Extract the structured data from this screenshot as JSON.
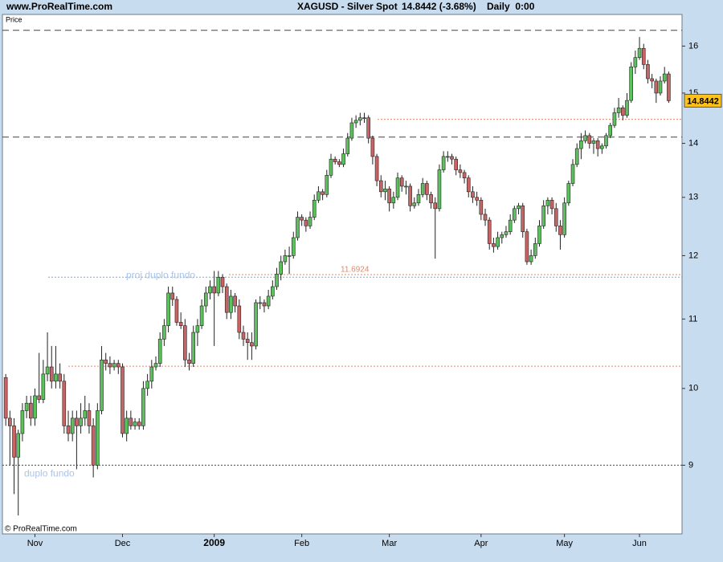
{
  "chart_data": {
    "type": "candlestick",
    "source": "www.ProRealTime.com",
    "title": "XAGUSD - Silver Spot",
    "quote": "14.8442 (-3.68%)",
    "period": "Daily  0:00",
    "y_label": "Price",
    "copyright": "© ProRealTime.com",
    "log_scale": true,
    "up_color": "#5cc05c",
    "down_color": "#c86464",
    "ylim": [
      8.19,
      16.71
    ],
    "yticks": [
      9,
      10,
      11,
      12,
      13,
      14,
      15,
      16
    ],
    "xlim": [
      -0.8,
      162.2
    ],
    "xticks": [
      {
        "value": 7,
        "label": "Nov"
      },
      {
        "value": 28,
        "label": "Dec"
      },
      {
        "value": 50,
        "label": "2009"
      },
      {
        "value": 71,
        "label": "Feb"
      },
      {
        "value": 92,
        "label": "Mar"
      },
      {
        "value": 114,
        "label": "Apr"
      },
      {
        "value": 134,
        "label": "May"
      },
      {
        "value": 152,
        "label": "Jun"
      }
    ],
    "hlines": [
      {
        "value": 16.35,
        "color": "#444444",
        "dash": "dashed"
      },
      {
        "value": 14.12,
        "color": "#444444",
        "dash": "dashed"
      },
      {
        "value": 14.47,
        "color": "#e08a6a",
        "dash": "dotted"
      },
      {
        "value": 11.6924,
        "color": "#e08a6a",
        "dash": "dotted"
      },
      {
        "value": 11.65,
        "color": "#7aa6e0",
        "dash": "dotted"
      },
      {
        "value": 10.31,
        "color": "#e08a6a",
        "dash": "dotted"
      },
      {
        "value": 9,
        "color": "#444444",
        "dash": "dotted"
      }
    ],
    "annotations": [
      "proj duplo fundo",
      "duplo fundo"
    ],
    "candles": [
      [
        10.15,
        10.2,
        9.5,
        9.6
      ],
      [
        9.6,
        9.7,
        9.0,
        9.5
      ],
      [
        9.5,
        9.6,
        8.65,
        9.1
      ],
      [
        9.1,
        9.45,
        8.4,
        9.4
      ],
      [
        9.4,
        9.8,
        9.3,
        9.7
      ],
      [
        9.7,
        9.9,
        9.6,
        9.8
      ],
      [
        9.8,
        9.9,
        9.5,
        9.6
      ],
      [
        9.6,
        10.0,
        9.5,
        9.9
      ],
      [
        9.9,
        10.5,
        9.8,
        9.85
      ],
      [
        9.85,
        10.4,
        9.8,
        10.2
      ],
      [
        10.2,
        10.8,
        10.1,
        10.3
      ],
      [
        10.3,
        10.6,
        10.0,
        10.1
      ],
      [
        10.1,
        10.6,
        10.0,
        10.2
      ],
      [
        10.2,
        10.35,
        10.0,
        10.1
      ],
      [
        10.1,
        10.2,
        9.4,
        9.5
      ],
      [
        9.5,
        9.7,
        9.3,
        9.4
      ],
      [
        9.4,
        9.7,
        9.3,
        9.6
      ],
      [
        9.6,
        9.7,
        8.95,
        9.5
      ],
      [
        9.5,
        9.8,
        9.4,
        9.6
      ],
      [
        9.6,
        9.9,
        9.5,
        9.7
      ],
      [
        9.7,
        9.8,
        9.4,
        9.5
      ],
      [
        9.5,
        9.6,
        8.85,
        9.0
      ],
      [
        9.0,
        9.8,
        8.95,
        9.7
      ],
      [
        9.7,
        10.6,
        9.65,
        10.4
      ],
      [
        10.4,
        10.5,
        10.25,
        10.35
      ],
      [
        10.35,
        10.45,
        10.2,
        10.3
      ],
      [
        10.3,
        10.4,
        10.25,
        10.35
      ],
      [
        10.35,
        10.4,
        10.2,
        10.3
      ],
      [
        10.3,
        10.35,
        9.35,
        9.4
      ],
      [
        9.4,
        9.7,
        9.3,
        9.6
      ],
      [
        9.6,
        9.7,
        9.45,
        9.5
      ],
      [
        9.5,
        9.6,
        9.45,
        9.55
      ],
      [
        9.55,
        9.6,
        9.45,
        9.5
      ],
      [
        9.5,
        10.1,
        9.45,
        10.0
      ],
      [
        10.0,
        10.2,
        9.9,
        10.1
      ],
      [
        10.1,
        10.4,
        10.0,
        10.3
      ],
      [
        10.3,
        10.45,
        10.25,
        10.35
      ],
      [
        10.35,
        10.8,
        10.3,
        10.7
      ],
      [
        10.7,
        11.0,
        10.6,
        10.9
      ],
      [
        10.9,
        11.5,
        10.8,
        11.4
      ],
      [
        11.4,
        11.5,
        11.2,
        11.3
      ],
      [
        11.3,
        11.35,
        10.9,
        10.95
      ],
      [
        10.95,
        11.1,
        10.85,
        10.9
      ],
      [
        10.9,
        11.0,
        10.3,
        10.4
      ],
      [
        10.4,
        10.5,
        10.25,
        10.35
      ],
      [
        10.35,
        10.9,
        10.3,
        10.8
      ],
      [
        10.8,
        11.0,
        10.6,
        10.9
      ],
      [
        10.9,
        11.3,
        10.85,
        11.2
      ],
      [
        11.2,
        11.5,
        11.1,
        11.4
      ],
      [
        11.4,
        11.6,
        11.3,
        11.5
      ],
      [
        11.5,
        11.75,
        10.6,
        11.4
      ],
      [
        11.4,
        11.75,
        11.35,
        11.65
      ],
      [
        11.65,
        11.7,
        11.4,
        11.5
      ],
      [
        11.5,
        11.55,
        11.0,
        11.1
      ],
      [
        11.1,
        11.45,
        11.0,
        11.35
      ],
      [
        11.35,
        11.4,
        11.1,
        11.2
      ],
      [
        11.2,
        11.3,
        10.7,
        10.8
      ],
      [
        10.8,
        10.9,
        10.6,
        10.7
      ],
      [
        10.7,
        10.8,
        10.4,
        10.65
      ],
      [
        10.65,
        10.8,
        10.4,
        10.6
      ],
      [
        10.6,
        11.3,
        10.55,
        11.25
      ],
      [
        11.25,
        11.35,
        11.15,
        11.25
      ],
      [
        11.25,
        11.3,
        11.1,
        11.2
      ],
      [
        11.2,
        11.45,
        11.15,
        11.35
      ],
      [
        11.35,
        11.6,
        11.3,
        11.5
      ],
      [
        11.5,
        11.8,
        11.45,
        11.7
      ],
      [
        11.7,
        12.0,
        11.6,
        11.9
      ],
      [
        11.9,
        12.1,
        11.85,
        12.0
      ],
      [
        12.0,
        12.15,
        11.7,
        12.0
      ],
      [
        12.0,
        12.4,
        11.95,
        12.3
      ],
      [
        12.3,
        12.75,
        12.25,
        12.65
      ],
      [
        12.65,
        12.7,
        12.5,
        12.6
      ],
      [
        12.6,
        12.65,
        12.4,
        12.5
      ],
      [
        12.5,
        12.75,
        12.45,
        12.65
      ],
      [
        12.65,
        13.05,
        12.6,
        12.95
      ],
      [
        12.95,
        13.2,
        12.9,
        13.1
      ],
      [
        13.1,
        13.15,
        12.95,
        13.05
      ],
      [
        13.05,
        13.5,
        13.0,
        13.4
      ],
      [
        13.4,
        13.8,
        13.35,
        13.7
      ],
      [
        13.7,
        13.75,
        13.6,
        13.65
      ],
      [
        13.65,
        13.7,
        13.55,
        13.6
      ],
      [
        13.6,
        13.9,
        13.55,
        13.8
      ],
      [
        13.8,
        14.2,
        13.75,
        14.1
      ],
      [
        14.1,
        14.5,
        14.05,
        14.4
      ],
      [
        14.4,
        14.55,
        14.3,
        14.45
      ],
      [
        14.45,
        14.6,
        14.35,
        14.5
      ],
      [
        14.5,
        14.6,
        14.4,
        14.5
      ],
      [
        14.5,
        14.55,
        14.0,
        14.1
      ],
      [
        14.1,
        14.15,
        13.6,
        13.75
      ],
      [
        13.75,
        13.8,
        13.2,
        13.3
      ],
      [
        13.3,
        13.4,
        13.0,
        13.1
      ],
      [
        13.1,
        13.3,
        12.95,
        13.15
      ],
      [
        13.15,
        13.2,
        12.75,
        12.9
      ],
      [
        12.9,
        13.1,
        12.8,
        13.0
      ],
      [
        13.0,
        13.45,
        12.95,
        13.35
      ],
      [
        13.35,
        13.4,
        13.1,
        13.2
      ],
      [
        13.2,
        13.3,
        13.05,
        13.2
      ],
      [
        13.2,
        13.25,
        12.75,
        12.85
      ],
      [
        12.85,
        13.0,
        12.8,
        12.9
      ],
      [
        12.9,
        13.15,
        12.85,
        13.05
      ],
      [
        13.05,
        13.35,
        13.0,
        13.25
      ],
      [
        13.25,
        13.3,
        12.95,
        13.05
      ],
      [
        13.05,
        13.1,
        12.8,
        12.9
      ],
      [
        12.9,
        13.0,
        11.95,
        12.8
      ],
      [
        12.8,
        13.6,
        12.75,
        13.5
      ],
      [
        13.5,
        13.85,
        13.45,
        13.75
      ],
      [
        13.75,
        13.85,
        13.65,
        13.75
      ],
      [
        13.75,
        13.8,
        13.6,
        13.7
      ],
      [
        13.7,
        13.75,
        13.4,
        13.5
      ],
      [
        13.5,
        13.6,
        13.35,
        13.45
      ],
      [
        13.45,
        13.5,
        13.25,
        13.35
      ],
      [
        13.35,
        13.4,
        13.0,
        13.1
      ],
      [
        13.1,
        13.2,
        12.9,
        13.0
      ],
      [
        13.0,
        13.1,
        12.85,
        12.95
      ],
      [
        12.95,
        13.0,
        12.6,
        12.7
      ],
      [
        12.7,
        12.8,
        12.5,
        12.6
      ],
      [
        12.6,
        12.65,
        12.1,
        12.2
      ],
      [
        12.2,
        12.3,
        12.05,
        12.15
      ],
      [
        12.15,
        12.4,
        12.1,
        12.3
      ],
      [
        12.3,
        12.4,
        12.2,
        12.35
      ],
      [
        12.35,
        12.5,
        12.3,
        12.4
      ],
      [
        12.4,
        12.7,
        12.35,
        12.6
      ],
      [
        12.6,
        12.85,
        12.55,
        12.8
      ],
      [
        12.8,
        12.9,
        12.7,
        12.85
      ],
      [
        12.85,
        12.9,
        12.3,
        12.4
      ],
      [
        12.4,
        12.45,
        11.85,
        11.9
      ],
      [
        11.9,
        12.1,
        11.85,
        12.0
      ],
      [
        12.0,
        12.3,
        11.95,
        12.2
      ],
      [
        12.2,
        12.6,
        12.15,
        12.5
      ],
      [
        12.5,
        12.95,
        12.45,
        12.85
      ],
      [
        12.85,
        13.0,
        12.7,
        12.95
      ],
      [
        12.95,
        13.0,
        12.7,
        12.8
      ],
      [
        12.8,
        12.9,
        12.4,
        12.5
      ],
      [
        12.5,
        12.6,
        12.1,
        12.35
      ],
      [
        12.35,
        13.0,
        12.3,
        12.9
      ],
      [
        12.9,
        13.3,
        12.85,
        13.25
      ],
      [
        13.25,
        13.7,
        13.2,
        13.6
      ],
      [
        13.6,
        14.0,
        13.55,
        13.9
      ],
      [
        13.9,
        14.2,
        13.7,
        14.05
      ],
      [
        14.05,
        14.25,
        14.0,
        14.15
      ],
      [
        14.15,
        14.2,
        13.9,
        14.0
      ],
      [
        14.0,
        14.1,
        13.8,
        14.05
      ],
      [
        14.05,
        14.1,
        13.75,
        13.9
      ],
      [
        13.9,
        14.0,
        13.8,
        13.95
      ],
      [
        13.95,
        14.2,
        13.9,
        14.15
      ],
      [
        14.15,
        14.4,
        14.1,
        14.35
      ],
      [
        14.35,
        14.7,
        14.3,
        14.6
      ],
      [
        14.6,
        14.9,
        14.5,
        14.7
      ],
      [
        14.7,
        14.75,
        14.45,
        14.55
      ],
      [
        14.55,
        15.0,
        14.5,
        14.85
      ],
      [
        14.85,
        15.65,
        14.8,
        15.55
      ],
      [
        15.55,
        15.9,
        15.4,
        15.75
      ],
      [
        15.75,
        16.2,
        15.7,
        15.95
      ],
      [
        15.95,
        16.05,
        15.5,
        15.6
      ],
      [
        15.6,
        15.7,
        15.2,
        15.3
      ],
      [
        15.3,
        15.4,
        15.1,
        15.25
      ],
      [
        15.25,
        15.3,
        14.8,
        15.0
      ],
      [
        15.0,
        15.35,
        14.95,
        15.25
      ],
      [
        15.25,
        15.55,
        15.2,
        15.4
      ],
      [
        15.4,
        15.45,
        14.8,
        14.8442
      ]
    ]
  }
}
